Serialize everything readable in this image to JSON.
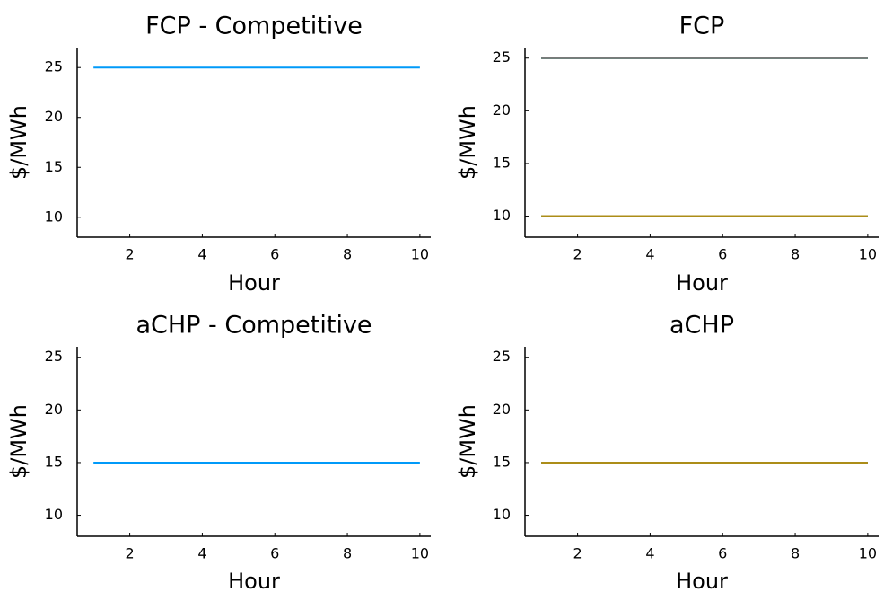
{
  "chart_data": [
    {
      "type": "line",
      "title": "FCP - Competitive",
      "xlabel": "Hour",
      "ylabel": "$/MWh",
      "xlim": [
        0.55,
        10.3
      ],
      "ylim": [
        8,
        27
      ],
      "xticks": [
        2,
        4,
        6,
        8,
        10
      ],
      "yticks": [
        10,
        15,
        20,
        25
      ],
      "grid": false,
      "series": [
        {
          "color": "#009af9",
          "x": [
            1,
            2,
            3,
            4,
            5,
            6,
            7,
            8,
            9,
            10
          ],
          "y": [
            25,
            25,
            25,
            25,
            25,
            25,
            25,
            25,
            25,
            25
          ]
        }
      ]
    },
    {
      "type": "line",
      "title": "FCP",
      "xlabel": "Hour",
      "ylabel": "$/MWh",
      "xlim": [
        0.55,
        10.3
      ],
      "ylim": [
        8,
        26
      ],
      "xticks": [
        2,
        4,
        6,
        8,
        10
      ],
      "yticks": [
        10,
        15,
        20,
        25
      ],
      "grid": false,
      "series": [
        {
          "color": "#e26f46",
          "x": [
            1,
            2,
            3,
            4,
            5,
            6,
            7,
            8,
            9,
            10
          ],
          "y": [
            25,
            25,
            25,
            25,
            25,
            25,
            25,
            25,
            25,
            25
          ]
        },
        {
          "color": "#3da44d",
          "x": [
            1,
            2,
            3,
            4,
            5,
            6,
            7,
            8,
            9,
            10
          ],
          "y": [
            25,
            25,
            25,
            25,
            25,
            25,
            25,
            25,
            25,
            25
          ]
        },
        {
          "color": "#c271d2",
          "x": [
            1,
            2,
            3,
            4,
            5,
            6,
            7,
            8,
            9,
            10
          ],
          "y": [
            25,
            25,
            25,
            25,
            25,
            25,
            25,
            25,
            25,
            25
          ]
        },
        {
          "color": "#ac8d18",
          "x": [
            1,
            2,
            3,
            4,
            5,
            6,
            7,
            8,
            9,
            10
          ],
          "y": [
            25,
            25,
            25,
            25,
            25,
            25,
            25,
            25,
            25,
            25
          ]
        },
        {
          "color": "#00a9ad",
          "x": [
            1,
            2,
            3,
            4,
            5,
            6,
            7,
            8,
            9,
            10
          ],
          "y": [
            25,
            25,
            25,
            25,
            25,
            25,
            25,
            25,
            25,
            25
          ]
        },
        {
          "color": "#7a7a7a",
          "x": [
            1,
            2,
            3,
            4,
            5,
            6,
            7,
            8,
            9,
            10
          ],
          "y": [
            25,
            25,
            25,
            25,
            25,
            25,
            25,
            25,
            25,
            25
          ]
        },
        {
          "color": "#009af9",
          "x": [
            1,
            2,
            3,
            4,
            5,
            6,
            7,
            8,
            9,
            10
          ],
          "y": [
            10,
            10,
            10,
            10,
            10,
            10,
            10,
            10,
            10,
            10
          ]
        },
        {
          "color": "#3da44d",
          "x": [
            1,
            2,
            3,
            4,
            5,
            6,
            7,
            8,
            9,
            10
          ],
          "y": [
            10,
            10,
            10,
            10,
            10,
            10,
            10,
            10,
            10,
            10
          ]
        },
        {
          "color": "#ac8d18",
          "x": [
            1,
            2,
            3,
            4,
            5,
            6,
            7,
            8,
            9,
            10
          ],
          "y": [
            10,
            10,
            10,
            10,
            10,
            10,
            10,
            10,
            10,
            10
          ]
        }
      ]
    },
    {
      "type": "line",
      "title": "aCHP - Competitive",
      "xlabel": "Hour",
      "ylabel": "$/MWh",
      "xlim": [
        0.55,
        10.3
      ],
      "ylim": [
        8,
        26
      ],
      "xticks": [
        2,
        4,
        6,
        8,
        10
      ],
      "yticks": [
        10,
        15,
        20,
        25
      ],
      "grid": false,
      "series": [
        {
          "color": "#009af9",
          "x": [
            1,
            2,
            3,
            4,
            5,
            6,
            7,
            8,
            9,
            10
          ],
          "y": [
            15,
            15,
            15,
            15,
            15,
            15,
            15,
            15,
            15,
            15
          ]
        }
      ]
    },
    {
      "type": "line",
      "title": "aCHP",
      "xlabel": "Hour",
      "ylabel": "$/MWh",
      "xlim": [
        0.55,
        10.3
      ],
      "ylim": [
        8,
        26
      ],
      "xticks": [
        2,
        4,
        6,
        8,
        10
      ],
      "yticks": [
        10,
        15,
        20,
        25
      ],
      "grid": false,
      "series": [
        {
          "color": "#009af9",
          "x": [
            1,
            2,
            3,
            4,
            5,
            6,
            7,
            8,
            9,
            10
          ],
          "y": [
            15,
            15,
            15,
            15,
            15,
            15,
            15,
            15,
            15,
            15
          ]
        },
        {
          "color": "#e26f46",
          "x": [
            1,
            2,
            3,
            4,
            5,
            6,
            7,
            8,
            9,
            10
          ],
          "y": [
            15,
            15,
            15,
            15,
            15,
            15,
            15,
            15,
            15,
            15
          ]
        },
        {
          "color": "#3da44d",
          "x": [
            1,
            2,
            3,
            4,
            5,
            6,
            7,
            8,
            9,
            10
          ],
          "y": [
            15,
            15,
            15,
            15,
            15,
            15,
            15,
            15,
            15,
            15
          ]
        },
        {
          "color": "#7a7a7a",
          "x": [
            1,
            2,
            3,
            4,
            5,
            6,
            7,
            8,
            9,
            10
          ],
          "y": [
            15,
            15,
            15,
            15,
            15,
            15,
            15,
            15,
            15,
            15
          ]
        },
        {
          "color": "#ac8d18",
          "x": [
            1,
            2,
            3,
            4,
            5,
            6,
            7,
            8,
            9,
            10
          ],
          "y": [
            15,
            15,
            15,
            15,
            15,
            15,
            15,
            15,
            15,
            15
          ]
        }
      ]
    }
  ]
}
